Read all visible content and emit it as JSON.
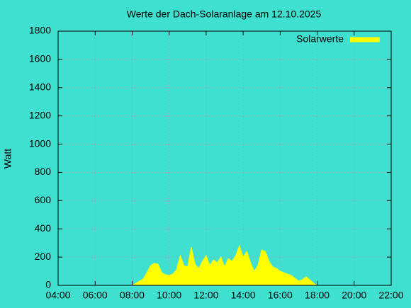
{
  "chart_data": {
    "type": "area",
    "title": "Werte der Dach-Solaranlage am 12.10.2025",
    "y_label": "Watt",
    "series": [
      {
        "name": "Solarwerte",
        "color": "#ffff00",
        "x": [
          8.0,
          8.2,
          8.4,
          8.6,
          8.8,
          9.0,
          9.2,
          9.4,
          9.6,
          9.8,
          10.0,
          10.2,
          10.4,
          10.6,
          10.8,
          11.0,
          11.2,
          11.4,
          11.6,
          11.8,
          12.0,
          12.2,
          12.4,
          12.6,
          12.8,
          13.0,
          13.2,
          13.4,
          13.6,
          13.8,
          14.0,
          14.2,
          14.4,
          14.6,
          14.8,
          15.0,
          15.2,
          15.4,
          15.6,
          15.8,
          16.0,
          16.2,
          16.4,
          16.6,
          16.8,
          17.0,
          17.2,
          17.4,
          17.6,
          17.8,
          18.0
        ],
        "values": [
          0,
          15,
          30,
          45,
          90,
          140,
          155,
          150,
          90,
          75,
          70,
          80,
          110,
          210,
          140,
          130,
          270,
          150,
          120,
          170,
          210,
          140,
          180,
          160,
          200,
          130,
          190,
          170,
          210,
          280,
          200,
          240,
          160,
          100,
          140,
          250,
          240,
          170,
          130,
          120,
          100,
          90,
          80,
          70,
          50,
          30,
          40,
          60,
          40,
          15,
          0
        ]
      }
    ],
    "xlim": [
      4,
      22
    ],
    "xticks": [
      {
        "value": 4,
        "label": "04:00"
      },
      {
        "value": 6,
        "label": "06:00"
      },
      {
        "value": 8,
        "label": "08:00"
      },
      {
        "value": 10,
        "label": "10:00"
      },
      {
        "value": 12,
        "label": "12:00"
      },
      {
        "value": 14,
        "label": "14:00"
      },
      {
        "value": 16,
        "label": "16:00"
      },
      {
        "value": 18,
        "label": "18:00"
      },
      {
        "value": 20,
        "label": "20:00"
      },
      {
        "value": 22,
        "label": "22:00"
      }
    ],
    "ylim": [
      0,
      1800
    ],
    "yticks": [
      0,
      200,
      400,
      600,
      800,
      1000,
      1200,
      1400,
      1600,
      1800
    ],
    "grid": true,
    "legend": "top-right",
    "background": "#40e0d0"
  }
}
